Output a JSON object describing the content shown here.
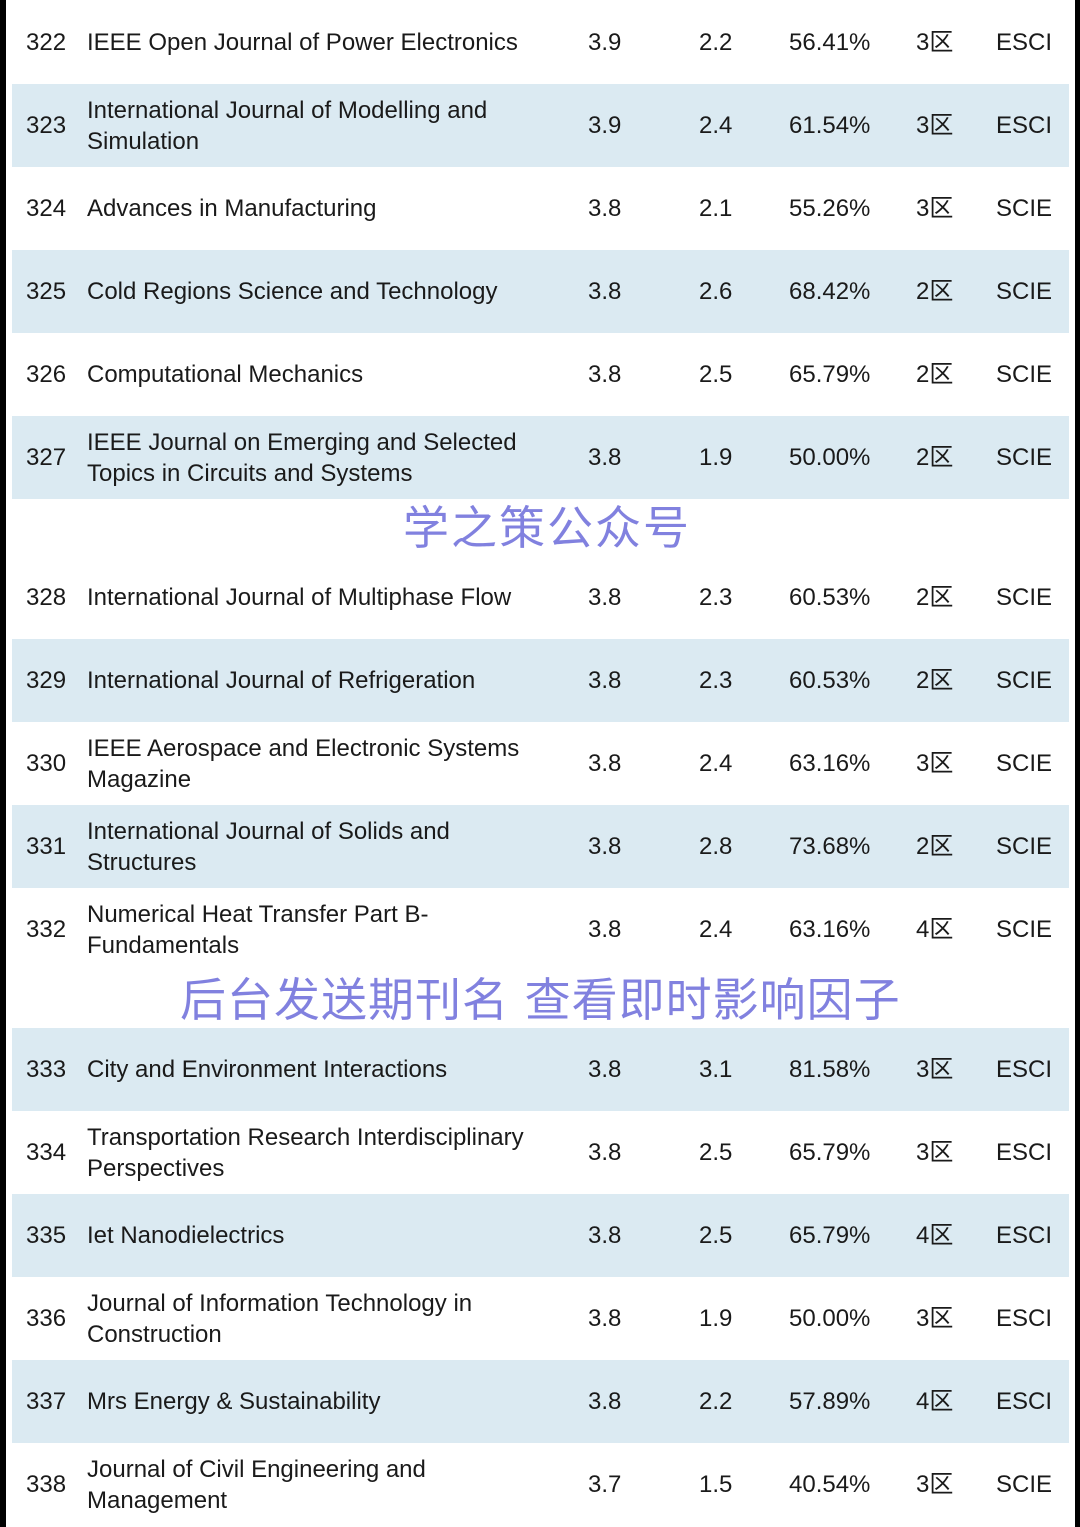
{
  "rows": [
    {
      "no": "322",
      "name": "IEEE Open Journal of Power Electronics",
      "if": "3.9",
      "five": "2.2",
      "pct": "56.41%",
      "zone": "3区",
      "index": "ESCI"
    },
    {
      "no": "323",
      "name": "International Journal of Modelling and Simulation",
      "if": "3.9",
      "five": "2.4",
      "pct": "61.54%",
      "zone": "3区",
      "index": "ESCI"
    },
    {
      "no": "324",
      "name": "Advances in Manufacturing",
      "if": "3.8",
      "five": "2.1",
      "pct": "55.26%",
      "zone": "3区",
      "index": "SCIE"
    },
    {
      "no": "325",
      "name": "Cold Regions Science and Technology",
      "if": "3.8",
      "five": "2.6",
      "pct": "68.42%",
      "zone": "2区",
      "index": "SCIE"
    },
    {
      "no": "326",
      "name": "Computational Mechanics",
      "if": "3.8",
      "five": "2.5",
      "pct": "65.79%",
      "zone": "2区",
      "index": "SCIE"
    },
    {
      "no": "327",
      "name": "IEEE Journal on Emerging and Selected Topics in Circuits and Systems",
      "if": "3.8",
      "five": "1.9",
      "pct": "50.00%",
      "zone": "2区",
      "index": "SCIE"
    },
    {
      "no": "328",
      "name": "International Journal of Multiphase Flow",
      "if": "3.8",
      "five": "2.3",
      "pct": "60.53%",
      "zone": "2区",
      "index": "SCIE"
    },
    {
      "no": "329",
      "name": "International Journal of Refrigeration",
      "if": "3.8",
      "five": "2.3",
      "pct": "60.53%",
      "zone": "2区",
      "index": "SCIE"
    },
    {
      "no": "330",
      "name": "IEEE Aerospace and Electronic Systems Magazine",
      "if": "3.8",
      "five": "2.4",
      "pct": "63.16%",
      "zone": "3区",
      "index": "SCIE"
    },
    {
      "no": "331",
      "name": "International Journal of Solids and Structures",
      "if": "3.8",
      "five": "2.8",
      "pct": "73.68%",
      "zone": "2区",
      "index": "SCIE"
    },
    {
      "no": "332",
      "name": "Numerical Heat Transfer Part B-Fundamentals",
      "if": "3.8",
      "five": "2.4",
      "pct": "63.16%",
      "zone": "4区",
      "index": "SCIE"
    },
    {
      "no": "333",
      "name": "City and Environment Interactions",
      "if": "3.8",
      "five": "3.1",
      "pct": "81.58%",
      "zone": "3区",
      "index": "ESCI"
    },
    {
      "no": "334",
      "name": "Transportation Research Interdisciplinary Perspectives",
      "if": "3.8",
      "five": "2.5",
      "pct": "65.79%",
      "zone": "3区",
      "index": "ESCI"
    },
    {
      "no": "335",
      "name": "Iet Nanodielectrics",
      "if": "3.8",
      "five": "2.5",
      "pct": "65.79%",
      "zone": "4区",
      "index": "ESCI"
    },
    {
      "no": "336",
      "name": "Journal of Information Technology in Construction",
      "if": "3.8",
      "five": "1.9",
      "pct": "50.00%",
      "zone": "3区",
      "index": "ESCI"
    },
    {
      "no": "337",
      "name": "Mrs Energy & Sustainability",
      "if": "3.8",
      "five": "2.2",
      "pct": "57.89%",
      "zone": "4区",
      "index": "ESCI"
    },
    {
      "no": "338",
      "name": "Journal of Civil Engineering and Management",
      "if": "3.7",
      "five": "1.5",
      "pct": "40.54%",
      "zone": "3区",
      "index": "SCIE"
    }
  ],
  "watermarks": {
    "top": "学之策公众号",
    "bottom": "后台发送期刊名 查看即时影响因子"
  },
  "colors": {
    "shade": "#dbeaf2",
    "watermark": "#5050d2"
  }
}
